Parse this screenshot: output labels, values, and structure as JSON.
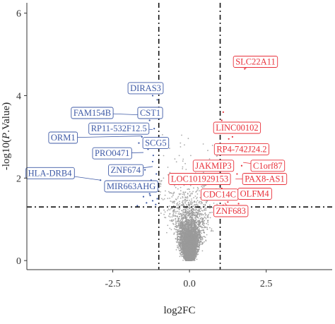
{
  "chart_data": {
    "type": "scatter",
    "title": "",
    "xlabel": "log2FC",
    "ylabel_prefix": "-log10(",
    "ylabel_italic": "P",
    "ylabel_suffix": ".Value)",
    "xlim": [
      -5.3,
      4.65
    ],
    "ylim": [
      -0.22,
      6.25
    ],
    "x_ticks": [
      -2.5,
      0.0,
      2.5
    ],
    "x_tick_labels": [
      "-2.5",
      "0.0",
      "2.5"
    ],
    "y_ticks": [
      0,
      2,
      4,
      6
    ],
    "y_tick_labels": [
      "0",
      "2",
      "4",
      "6"
    ],
    "fc_thresholds": [
      -1,
      1
    ],
    "pvalue_threshold": 1.3,
    "grid": false,
    "legend": "none",
    "colors": {
      "up": "#e8303a",
      "down": "#3e5aa6",
      "not_significant": "#9a9a9a",
      "threshold_line": "#111111",
      "label_up_border": "#e8303a",
      "label_down_border": "#3e5aa6"
    },
    "background_points_count": 6500,
    "down_points": [
      [
        -1.4,
        4.2
      ],
      [
        -1.2,
        4.0
      ],
      [
        -1.05,
        3.9
      ],
      [
        -1.3,
        3.4
      ],
      [
        -1.15,
        3.2
      ],
      [
        -1.55,
        3.0
      ],
      [
        -1.1,
        2.9
      ],
      [
        -1.35,
        2.7
      ],
      [
        -1.2,
        2.4
      ],
      [
        -1.45,
        2.2
      ],
      [
        -1.08,
        2.1
      ],
      [
        -1.25,
        1.95
      ],
      [
        -1.6,
        1.8
      ],
      [
        -1.12,
        1.7
      ],
      [
        -1.3,
        1.62
      ],
      [
        -1.5,
        1.55
      ],
      [
        -1.05,
        1.5
      ],
      [
        -1.2,
        1.45
      ],
      [
        -1.4,
        1.4
      ],
      [
        -1.1,
        1.36
      ],
      [
        -1.7,
        1.33
      ],
      [
        -1.28,
        1.58
      ],
      [
        -2.9,
        1.95
      ],
      [
        -1.18,
        2.55
      ],
      [
        -1.65,
        2.85
      ]
    ],
    "up_points": [
      [
        1.8,
        4.65
      ],
      [
        1.1,
        3.6
      ],
      [
        1.05,
        3.4
      ],
      [
        1.25,
        3.2
      ],
      [
        1.4,
        3.0
      ],
      [
        1.15,
        2.8
      ],
      [
        1.35,
        2.6
      ],
      [
        1.05,
        2.4
      ],
      [
        1.2,
        2.2
      ],
      [
        1.55,
        2.1
      ],
      [
        1.1,
        2.0
      ],
      [
        1.3,
        1.85
      ],
      [
        1.05,
        1.75
      ],
      [
        1.2,
        1.65
      ],
      [
        1.45,
        1.55
      ],
      [
        1.08,
        1.48
      ],
      [
        1.25,
        1.42
      ],
      [
        1.6,
        1.38
      ],
      [
        1.1,
        1.34
      ],
      [
        1.35,
        1.32
      ],
      [
        1.02,
        1.6
      ],
      [
        1.18,
        1.9
      ],
      [
        1.7,
        2.3
      ],
      [
        1.5,
        1.7
      ],
      [
        1.28,
        2.95
      ]
    ],
    "labels": [
      {
        "text": "SLC22A11",
        "group": "up",
        "x": 1.8,
        "y": 4.65,
        "lx": 2.15,
        "ly": 4.82
      },
      {
        "text": "LINC00102",
        "group": "up",
        "x": 1.15,
        "y": 3.22,
        "lx": 1.55,
        "ly": 3.22
      },
      {
        "text": "RP4-742J24.2",
        "group": "up",
        "x": 1.25,
        "y": 2.78,
        "lx": 1.7,
        "ly": 2.7
      },
      {
        "text": "C1orf87",
        "group": "up",
        "x": 1.75,
        "y": 2.38,
        "lx": 2.55,
        "ly": 2.3
      },
      {
        "text": "JAKMIP3",
        "group": "up",
        "x": 1.05,
        "y": 2.32,
        "lx": 0.78,
        "ly": 2.3
      },
      {
        "text": "PAX8-AS1",
        "group": "up",
        "x": 1.5,
        "y": 1.98,
        "lx": 2.45,
        "ly": 1.98
      },
      {
        "text": "LOC101929153",
        "group": "up",
        "x": 1.2,
        "y": 1.95,
        "lx": 0.33,
        "ly": 1.98
      },
      {
        "text": "CDC14C",
        "group": "up",
        "x": 1.05,
        "y": 1.62,
        "lx": 0.98,
        "ly": 1.6
      },
      {
        "text": "OLFM4",
        "group": "up",
        "x": 1.45,
        "y": 1.62,
        "lx": 2.12,
        "ly": 1.62
      },
      {
        "text": "ZNF683",
        "group": "up",
        "x": 1.15,
        "y": 1.4,
        "lx": 1.35,
        "ly": 1.2
      },
      {
        "text": "DIRAS3",
        "group": "down",
        "x": -1.05,
        "y": 4.05,
        "lx": -1.43,
        "ly": 4.18
      },
      {
        "text": "FAM154B",
        "group": "down",
        "x": -1.2,
        "y": 3.52,
        "lx": -3.17,
        "ly": 3.58
      },
      {
        "text": "CST1",
        "group": "down",
        "x": -1.1,
        "y": 3.52,
        "lx": -1.28,
        "ly": 3.58
      },
      {
        "text": "RP11-532F12.5",
        "group": "down",
        "x": -1.2,
        "y": 3.18,
        "lx": -2.3,
        "ly": 3.2
      },
      {
        "text": "ORM1",
        "group": "down",
        "x": -1.55,
        "y": 3.02,
        "lx": -4.12,
        "ly": 2.98
      },
      {
        "text": "SCG5",
        "group": "down",
        "x": -1.1,
        "y": 2.9,
        "lx": -1.1,
        "ly": 2.85
      },
      {
        "text": "PRO0471",
        "group": "down",
        "x": -1.5,
        "y": 2.62,
        "lx": -2.52,
        "ly": 2.6
      },
      {
        "text": "ZNF674",
        "group": "down",
        "x": -1.2,
        "y": 2.28,
        "lx": -2.08,
        "ly": 2.19
      },
      {
        "text": "HLA-DRB4",
        "group": "down",
        "x": -2.9,
        "y": 1.95,
        "lx": -4.55,
        "ly": 2.12
      },
      {
        "text": "MIR663AHG",
        "group": "down",
        "x": -1.1,
        "y": 1.82,
        "lx": -1.9,
        "ly": 1.8
      }
    ]
  }
}
